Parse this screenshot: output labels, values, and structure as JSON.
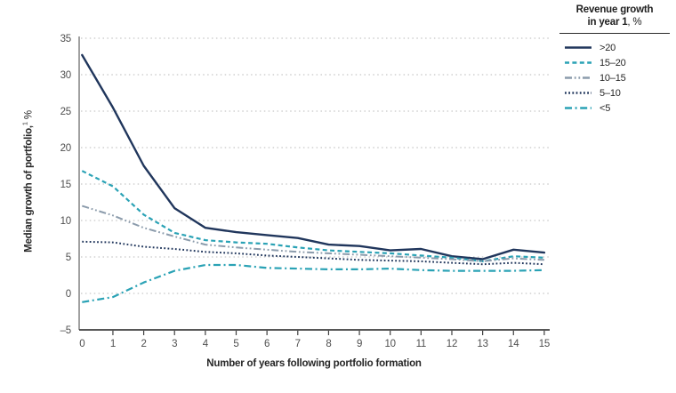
{
  "y_axis": {
    "title_bold": "Median growth of portfolio,",
    "title_sup": "1",
    "title_rest": " %"
  },
  "x_axis": {
    "title": "Number of years following portfolio formation"
  },
  "legend": {
    "title_line1": "Revenue growth",
    "title_line2_bold": "in year 1",
    "title_line2_rest": ", %"
  },
  "colors": {
    "navy": "#20365c",
    "teal": "#2aa2b5",
    "gray": "#8c9cac",
    "grid": "#b8b8b8",
    "axis_y": "#8f8f8f",
    "axis_x": "#3f3f3f",
    "tick_text": "#4f4f4f",
    "title_text": "#262626"
  },
  "chart_data": {
    "type": "line",
    "title": "",
    "xlabel": "Number of years following portfolio formation",
    "ylabel": "Median growth of portfolio, %",
    "legend_title": "Revenue growth in year 1, %",
    "legend_position": "top-right",
    "grid": "horizontal-dotted",
    "ylim": [
      -5,
      35
    ],
    "yticks": [
      35,
      30,
      25,
      20,
      15,
      10,
      5,
      0,
      -5
    ],
    "ytick_labels": [
      "35",
      "30",
      "25",
      "20",
      "15",
      "10",
      "5",
      "0",
      "–5"
    ],
    "x": [
      0,
      1,
      2,
      3,
      4,
      5,
      6,
      7,
      8,
      9,
      10,
      11,
      12,
      13,
      14,
      15
    ],
    "xticks": [
      0,
      1,
      2,
      3,
      4,
      5,
      6,
      7,
      8,
      9,
      10,
      11,
      12,
      13,
      14,
      15
    ],
    "series": [
      {
        "id": "gt20",
        "name": ">20",
        "color": "#20365c",
        "dash": "solid",
        "width": 2.4,
        "values": [
          32.7,
          25.5,
          17.5,
          11.7,
          9.0,
          8.4,
          8.0,
          7.6,
          6.7,
          6.5,
          5.9,
          6.1,
          5.1,
          4.7,
          6.0,
          5.6
        ]
      },
      {
        "id": "15-20",
        "name": "15–20",
        "color": "#2aa2b5",
        "dash": "dashed",
        "width": 2.2,
        "values": [
          16.8,
          14.7,
          10.8,
          8.3,
          7.3,
          7.0,
          6.8,
          6.3,
          5.9,
          5.7,
          5.5,
          5.2,
          4.9,
          4.4,
          5.1,
          4.9
        ]
      },
      {
        "id": "10-15",
        "name": "10–15",
        "color": "#8c9cac",
        "dash": "dashdotdot",
        "width": 2.0,
        "values": [
          12.0,
          10.7,
          9.0,
          7.8,
          6.7,
          6.3,
          6.0,
          5.7,
          5.5,
          5.3,
          5.1,
          4.9,
          4.7,
          4.4,
          4.8,
          4.6
        ]
      },
      {
        "id": "5-10",
        "name": "5–10",
        "color": "#20365c",
        "dash": "dotted",
        "width": 2.0,
        "values": [
          7.1,
          7.0,
          6.4,
          6.1,
          5.7,
          5.5,
          5.2,
          5.0,
          4.8,
          4.6,
          4.5,
          4.4,
          4.2,
          4.0,
          4.2,
          4.0
        ]
      },
      {
        "id": "lt5",
        "name": "<5",
        "color": "#2aa2b5",
        "dash": "dashdot",
        "width": 2.2,
        "values": [
          -1.2,
          -0.5,
          1.5,
          3.1,
          3.9,
          3.9,
          3.5,
          3.4,
          3.3,
          3.3,
          3.4,
          3.2,
          3.1,
          3.1,
          3.1,
          3.2
        ]
      }
    ]
  }
}
